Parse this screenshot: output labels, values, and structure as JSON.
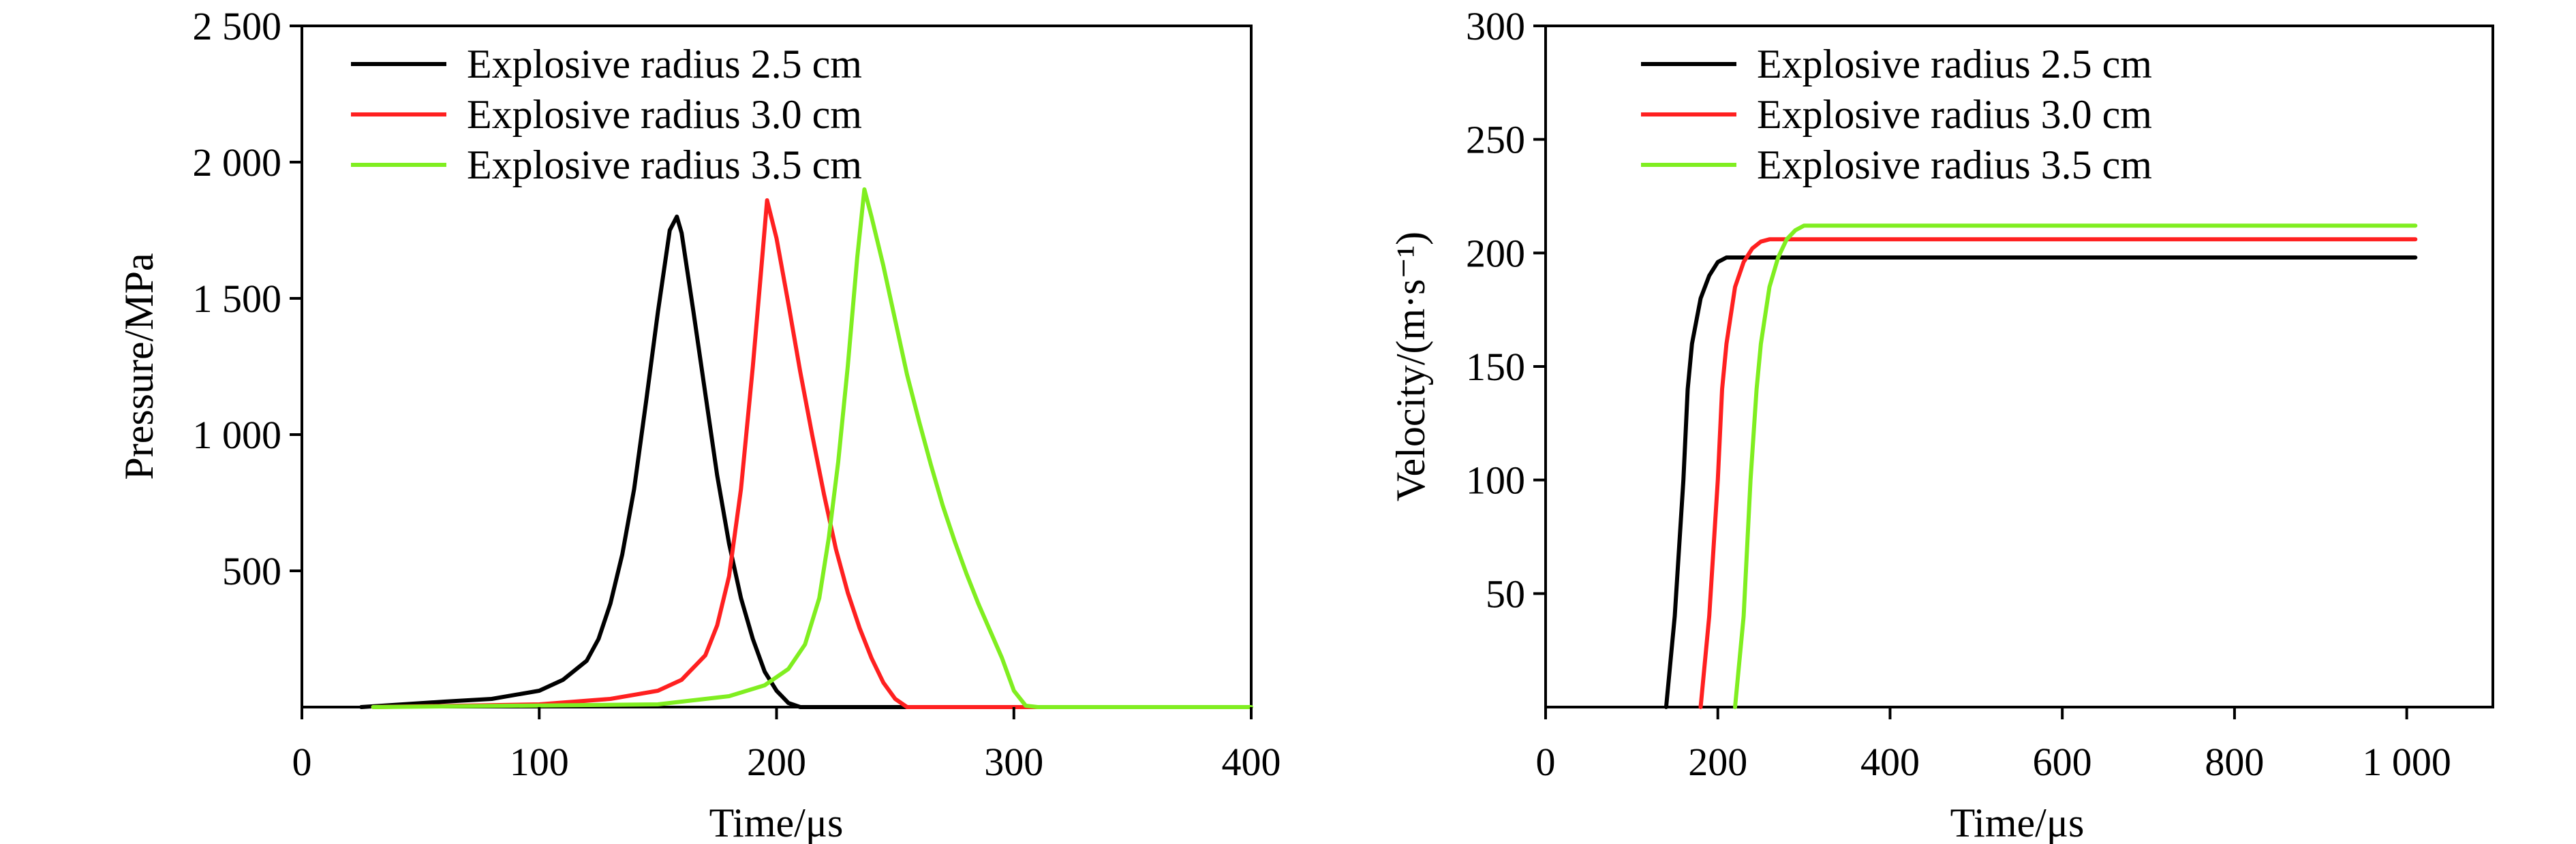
{
  "chart_data": [
    {
      "type": "line",
      "xlabel": "Time/μs",
      "ylabel": "Pressure/MPa",
      "xlim": [
        0,
        400
      ],
      "ylim": [
        0,
        2500
      ],
      "xticks": [
        0,
        100,
        200,
        300,
        400
      ],
      "yticks": [
        500,
        1000,
        1500,
        2000,
        2500
      ],
      "xtick_labels": [
        "0",
        "100",
        "200",
        "300",
        "400"
      ],
      "ytick_labels": [
        "500",
        "1 000",
        "1 500",
        "2 000",
        "2 500"
      ],
      "grid": false,
      "legend_position": "top-left",
      "series": [
        {
          "name": "Explosive radius 2.5 cm",
          "color": "#000000",
          "x": [
            25,
            60,
            80,
            100,
            110,
            120,
            125,
            130,
            135,
            140,
            145,
            150,
            155,
            158,
            160,
            165,
            170,
            175,
            180,
            185,
            190,
            195,
            200,
            205,
            210,
            300
          ],
          "y": [
            0,
            20,
            30,
            60,
            100,
            170,
            250,
            380,
            560,
            800,
            1120,
            1450,
            1750,
            1800,
            1740,
            1450,
            1150,
            850,
            600,
            400,
            250,
            130,
            60,
            15,
            0,
            0
          ]
        },
        {
          "name": "Explosive radius 3.0 cm",
          "color": "#ff2020",
          "x": [
            30,
            100,
            130,
            150,
            160,
            170,
            175,
            180,
            185,
            190,
            193,
            196,
            200,
            205,
            210,
            215,
            220,
            225,
            230,
            235,
            240,
            245,
            250,
            255,
            330
          ],
          "y": [
            0,
            10,
            30,
            60,
            100,
            190,
            300,
            480,
            800,
            1250,
            1550,
            1860,
            1720,
            1480,
            1230,
            1000,
            780,
            580,
            420,
            290,
            180,
            90,
            30,
            0,
            0
          ]
        },
        {
          "name": "Explosive radius 3.5 cm",
          "color": "#80ee20",
          "x": [
            30,
            150,
            180,
            195,
            205,
            212,
            218,
            222,
            226,
            230,
            234,
            237,
            240,
            245,
            250,
            255,
            260,
            265,
            270,
            275,
            280,
            285,
            290,
            295,
            300,
            305,
            310,
            400
          ],
          "y": [
            0,
            10,
            40,
            80,
            140,
            230,
            400,
            620,
            900,
            1250,
            1650,
            1900,
            1800,
            1620,
            1420,
            1220,
            1050,
            890,
            740,
            610,
            490,
            380,
            280,
            180,
            60,
            5,
            0,
            0
          ]
        }
      ]
    },
    {
      "type": "line",
      "xlabel": "Time/μs",
      "ylabel": "Velocity/(m·s⁻¹)",
      "xlim": [
        0,
        1100
      ],
      "ylim": [
        0,
        300
      ],
      "xticks": [
        0,
        200,
        400,
        600,
        800,
        1000
      ],
      "yticks": [
        50,
        100,
        150,
        200,
        250,
        300
      ],
      "xtick_labels": [
        "0",
        "200",
        "400",
        "600",
        "800",
        "1 000"
      ],
      "ytick_labels": [
        "50",
        "100",
        "150",
        "200",
        "250",
        "300"
      ],
      "grid": false,
      "legend_position": "top-left",
      "series": [
        {
          "name": "Explosive radius 2.5 cm",
          "color": "#000000",
          "x": [
            140,
            150,
            160,
            165,
            170,
            180,
            190,
            200,
            210,
            215,
            1010
          ],
          "y": [
            0,
            40,
            100,
            140,
            160,
            180,
            190,
            196,
            198,
            198,
            198
          ]
        },
        {
          "name": "Explosive radius 3.0 cm",
          "color": "#ff2020",
          "x": [
            180,
            190,
            200,
            205,
            210,
            220,
            230,
            240,
            250,
            260,
            1010
          ],
          "y": [
            0,
            40,
            100,
            140,
            160,
            185,
            196,
            202,
            205,
            206,
            206
          ]
        },
        {
          "name": "Explosive radius 3.5 cm",
          "color": "#80ee20",
          "x": [
            220,
            230,
            238,
            245,
            250,
            260,
            270,
            280,
            290,
            300,
            1010
          ],
          "y": [
            0,
            40,
            100,
            140,
            160,
            185,
            198,
            206,
            210,
            212,
            212
          ]
        }
      ]
    }
  ]
}
